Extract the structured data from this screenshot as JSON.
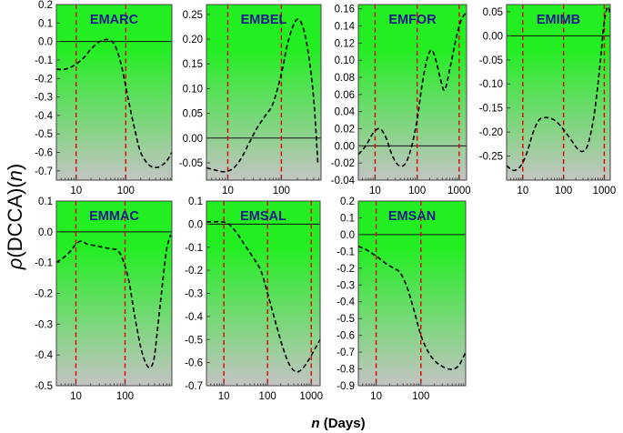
{
  "figure": {
    "ylabel_rho": "ρ",
    "ylabel_mid": "(DCCA)(",
    "ylabel_n": "n",
    "ylabel_end": ")",
    "xlabel_n": "n",
    "xlabel_rest": " (Days)"
  },
  "colors": {
    "gradient_top": "#22ee22",
    "gradient_bottom": "#c4c4c4",
    "curve": "#000000",
    "vline": "#e00000",
    "title": "#1a1a8c"
  },
  "chart_data": [
    {
      "type": "line",
      "title": "EMARC",
      "xscale": "log",
      "xlim": [
        4,
        850
      ],
      "ylim": [
        -0.75,
        0.2
      ],
      "xticks": [
        10,
        100
      ],
      "xticklabels": [
        "10",
        "100"
      ],
      "yticks": [
        0.2,
        0.1,
        0.0,
        -0.1,
        -0.2,
        -0.3,
        -0.4,
        -0.5,
        -0.6,
        -0.7
      ],
      "yticklabels": [
        "0.2",
        "0.1",
        "0.0",
        "-0.1",
        "-0.2",
        "-0.3",
        "-0.4",
        "-0.5",
        "-0.6",
        "-0.7"
      ],
      "zero_line": 0,
      "vlines": [
        10,
        100
      ],
      "x": [
        4,
        6,
        9,
        14,
        20,
        30,
        45,
        60,
        80,
        110,
        150,
        200,
        300,
        450,
        650,
        850
      ],
      "y": [
        -0.15,
        -0.15,
        -0.13,
        -0.09,
        -0.04,
        0.0,
        0.01,
        -0.02,
        -0.12,
        -0.3,
        -0.47,
        -0.6,
        -0.67,
        -0.68,
        -0.65,
        -0.6
      ]
    },
    {
      "type": "line",
      "title": "EMBEL",
      "xscale": "log",
      "xlim": [
        4,
        550
      ],
      "ylim": [
        -0.085,
        0.27
      ],
      "xticks": [
        10,
        100
      ],
      "xticklabels": [
        "10",
        "100"
      ],
      "yticks": [
        0.25,
        0.2,
        0.15,
        0.1,
        0.05,
        0.0,
        -0.05
      ],
      "yticklabels": [
        "0.25",
        "0.20",
        "0.15",
        "0.10",
        "0.05",
        "0.00",
        "-0.05"
      ],
      "zero_line": 0,
      "vlines": [
        10,
        100
      ],
      "x": [
        4,
        6,
        9,
        13,
        18,
        25,
        35,
        50,
        70,
        100,
        130,
        170,
        210,
        260,
        320,
        400,
        480
      ],
      "y": [
        -0.06,
        -0.065,
        -0.068,
        -0.06,
        -0.04,
        -0.01,
        0.02,
        0.045,
        0.07,
        0.13,
        0.19,
        0.23,
        0.24,
        0.22,
        0.17,
        0.08,
        -0.05
      ]
    },
    {
      "type": "line",
      "title": "EMFOR",
      "xscale": "log",
      "xlim": [
        4,
        1500
      ],
      "ylim": [
        -0.04,
        0.165
      ],
      "xticks": [
        10,
        100,
        1000
      ],
      "xticklabels": [
        "10",
        "100",
        "1000"
      ],
      "yticks": [
        0.16,
        0.14,
        0.12,
        0.1,
        0.08,
        0.06,
        0.04,
        0.02,
        0.0,
        -0.02,
        -0.04
      ],
      "yticklabels": [
        "0.16",
        "0.14",
        "0.12",
        "0.10",
        "0.08",
        "0.06",
        "0.04",
        "0.02",
        "0.00",
        "-0.02",
        "-0.04"
      ],
      "zero_line": 0,
      "vlines": [
        10,
        100,
        1000
      ],
      "x": [
        4,
        6,
        9,
        13,
        18,
        25,
        35,
        50,
        70,
        100,
        130,
        170,
        220,
        280,
        350,
        450,
        600,
        800,
        1000,
        1200,
        1450
      ],
      "y": [
        -0.01,
        0.0,
        0.015,
        0.02,
        0.01,
        -0.01,
        -0.022,
        -0.022,
        -0.005,
        0.03,
        0.07,
        0.1,
        0.112,
        0.1,
        0.08,
        0.065,
        0.09,
        0.12,
        0.14,
        0.15,
        0.155
      ]
    },
    {
      "type": "line",
      "title": "EMIMB",
      "xscale": "log",
      "xlim": [
        4,
        1400
      ],
      "ylim": [
        -0.3,
        0.065
      ],
      "xticks": [
        10,
        100,
        1000
      ],
      "xticklabels": [
        "10",
        "100",
        "1000"
      ],
      "yticks": [
        0.05,
        0.0,
        -0.05,
        -0.1,
        -0.15,
        -0.2,
        -0.25
      ],
      "yticklabels": [
        "0.05",
        "0.00",
        "-0.05",
        "-0.10",
        "-0.15",
        "-0.20",
        "-0.25"
      ],
      "zero_line": 0,
      "vlines": [
        10,
        100,
        1000
      ],
      "x": [
        4,
        6,
        9,
        13,
        18,
        25,
        35,
        50,
        70,
        100,
        150,
        220,
        300,
        400,
        550,
        700,
        850,
        1000,
        1200,
        1400
      ],
      "y": [
        -0.27,
        -0.28,
        -0.27,
        -0.24,
        -0.2,
        -0.175,
        -0.17,
        -0.172,
        -0.18,
        -0.195,
        -0.215,
        -0.235,
        -0.24,
        -0.225,
        -0.17,
        -0.1,
        -0.03,
        0.03,
        0.06,
        0.045
      ]
    },
    {
      "type": "line",
      "title": "EMMAC",
      "xscale": "log",
      "xlim": [
        4,
        900
      ],
      "ylim": [
        -0.5,
        0.1
      ],
      "xticks": [
        10,
        100
      ],
      "xticklabels": [
        "10",
        "100"
      ],
      "yticks": [
        0.1,
        0.0,
        -0.1,
        -0.2,
        -0.3,
        -0.4,
        -0.5
      ],
      "yticklabels": [
        "0.1",
        "0.0",
        "-0.1",
        "-0.2",
        "-0.3",
        "-0.4",
        "-0.5"
      ],
      "zero_line": 0,
      "vlines": [
        10,
        100
      ],
      "x": [
        4,
        6,
        8,
        10,
        13,
        17,
        25,
        35,
        50,
        70,
        90,
        120,
        160,
        220,
        300,
        380,
        450,
        550,
        700,
        850
      ],
      "y": [
        -0.1,
        -0.08,
        -0.06,
        -0.04,
        -0.03,
        -0.04,
        -0.045,
        -0.05,
        -0.055,
        -0.06,
        -0.09,
        -0.16,
        -0.28,
        -0.39,
        -0.44,
        -0.42,
        -0.33,
        -0.2,
        -0.06,
        -0.01
      ]
    },
    {
      "type": "line",
      "title": "EMSAL",
      "xscale": "log",
      "xlim": [
        4,
        1600
      ],
      "ylim": [
        -0.7,
        0.1
      ],
      "xticks": [
        10,
        100,
        1000
      ],
      "xticklabels": [
        "10",
        "100",
        "1000"
      ],
      "yticks": [
        0.1,
        0.0,
        -0.1,
        -0.2,
        -0.3,
        -0.4,
        -0.5,
        -0.6,
        -0.7
      ],
      "yticklabels": [
        "0.1",
        "0.0",
        "-0.1",
        "-0.2",
        "-0.3",
        "-0.4",
        "-0.5",
        "-0.6",
        "-0.7"
      ],
      "zero_line": 0,
      "vlines": [
        10,
        100,
        1000
      ],
      "x": [
        4,
        6,
        9,
        13,
        20,
        30,
        45,
        70,
        100,
        150,
        220,
        320,
        450,
        600,
        800,
        1000,
        1300,
        1600
      ],
      "y": [
        0.01,
        0.01,
        0.01,
        0.0,
        -0.04,
        -0.09,
        -0.14,
        -0.2,
        -0.3,
        -0.42,
        -0.53,
        -0.61,
        -0.64,
        -0.63,
        -0.6,
        -0.57,
        -0.53,
        -0.5
      ]
    },
    {
      "type": "line",
      "title": "EMSAN",
      "xscale": "log",
      "xlim": [
        4,
        1000
      ],
      "ylim": [
        -0.9,
        0.2
      ],
      "xticks": [
        10,
        100
      ],
      "xticklabels": [
        "10",
        "100"
      ],
      "yticks": [
        0.2,
        0.1,
        0.0,
        -0.1,
        -0.2,
        -0.3,
        -0.4,
        -0.5,
        -0.6,
        -0.7,
        -0.8,
        -0.9
      ],
      "yticklabels": [
        "0.2",
        "0.1",
        "0.0",
        "-0.1",
        "-0.2",
        "-0.3",
        "-0.4",
        "-0.5",
        "-0.6",
        "-0.7",
        "-0.8",
        "-0.9"
      ],
      "zero_line": 0,
      "vlines": [
        10,
        100
      ],
      "x": [
        4,
        6,
        9,
        13,
        18,
        25,
        35,
        50,
        70,
        100,
        140,
        200,
        280,
        400,
        550,
        700,
        850,
        1000
      ],
      "y": [
        -0.07,
        -0.09,
        -0.12,
        -0.15,
        -0.18,
        -0.2,
        -0.23,
        -0.32,
        -0.45,
        -0.6,
        -0.69,
        -0.75,
        -0.78,
        -0.8,
        -0.8,
        -0.78,
        -0.74,
        -0.7
      ]
    }
  ]
}
